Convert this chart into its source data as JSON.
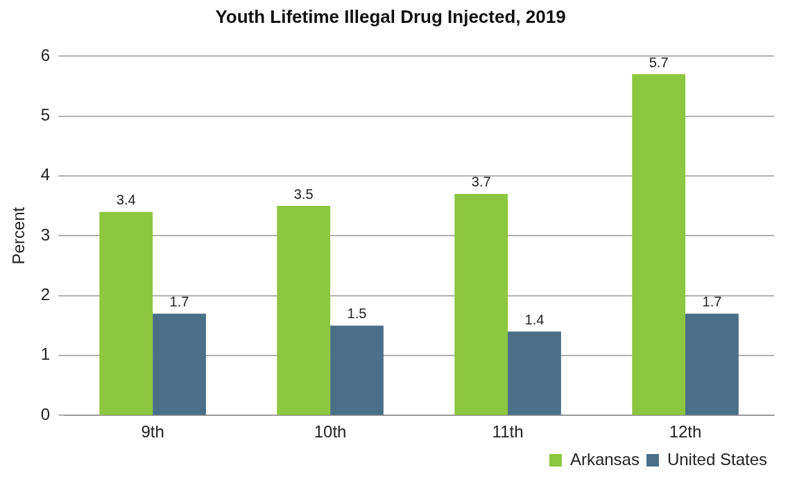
{
  "chart_data": {
    "type": "bar",
    "title": "Youth Lifetime Illegal Drug Injected, 2019",
    "ylabel": "Percent",
    "categories": [
      "9th",
      "10th",
      "11th",
      "12th"
    ],
    "series": [
      {
        "name": "Arkansas",
        "color": "#8dc63f",
        "values": [
          3.4,
          3.5,
          3.7,
          5.7
        ]
      },
      {
        "name": "United States",
        "color": "#4a6f87",
        "values": [
          1.7,
          1.5,
          1.4,
          1.7
        ]
      }
    ],
    "ylim": [
      0,
      6
    ],
    "yticks": [
      0,
      1,
      2,
      3,
      4,
      5,
      6
    ],
    "grid": "y",
    "legend": "bottom right",
    "data_labels": true
  }
}
